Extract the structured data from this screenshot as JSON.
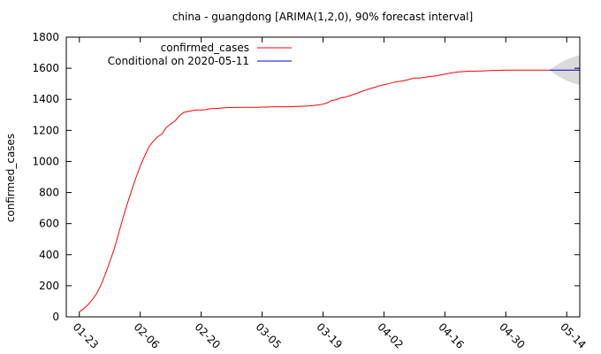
{
  "chart_data": {
    "type": "line",
    "title": "china - guangdong [ARIMA(1,2,0), 90% forecast interval]",
    "xlabel": "",
    "ylabel": "confirmed_cases",
    "ylim": [
      0,
      1800
    ],
    "yticks": [
      0,
      200,
      400,
      600,
      800,
      1000,
      1200,
      1400,
      1600,
      1800
    ],
    "xticks": [
      "01-23",
      "02-06",
      "02-20",
      "03-05",
      "03-19",
      "04-02",
      "04-16",
      "04-30",
      "05-14"
    ],
    "xlim_day_index": [
      -3,
      115
    ],
    "grid": false,
    "legend_position": "top-right",
    "series": [
      {
        "name": "confirmed_cases",
        "color": "#ff0000",
        "day_index_start": 0,
        "values": [
          32,
          53,
          78,
          111,
          151,
          207,
          277,
          354,
          436,
          535,
          632,
          725,
          813,
          895,
          970,
          1034,
          1095,
          1131,
          1159,
          1177,
          1219,
          1241,
          1261,
          1294,
          1316,
          1322,
          1328,
          1331,
          1332,
          1333,
          1339,
          1341,
          1342,
          1345,
          1347,
          1347,
          1348,
          1348,
          1349,
          1349,
          1349,
          1349,
          1350,
          1350,
          1351,
          1352,
          1352,
          1352,
          1352,
          1353,
          1354,
          1355,
          1356,
          1358,
          1361,
          1364,
          1369,
          1378,
          1392,
          1398,
          1409,
          1413,
          1421,
          1432,
          1441,
          1452,
          1461,
          1470,
          1478,
          1488,
          1494,
          1500,
          1508,
          1514,
          1517,
          1522,
          1530,
          1536,
          1537,
          1540,
          1544,
          1548,
          1551,
          1556,
          1562,
          1567,
          1572,
          1576,
          1578,
          1580,
          1581,
          1581,
          1582,
          1583,
          1584,
          1586,
          1586,
          1587,
          1588,
          1588,
          1588,
          1588,
          1588,
          1588,
          1588,
          1588,
          1588,
          1588,
          1588
        ]
      },
      {
        "name": "Conditional on 2020-05-11",
        "color": "#0000cc",
        "day_index_start": 108,
        "values": [
          1588,
          1588,
          1588,
          1588,
          1588,
          1588,
          1588,
          1588
        ],
        "interval_lower": [
          1588,
          1568,
          1550,
          1534,
          1520,
          1508,
          1500,
          1492
        ],
        "interval_upper": [
          1588,
          1608,
          1626,
          1642,
          1656,
          1668,
          1676,
          1684
        ]
      }
    ]
  }
}
